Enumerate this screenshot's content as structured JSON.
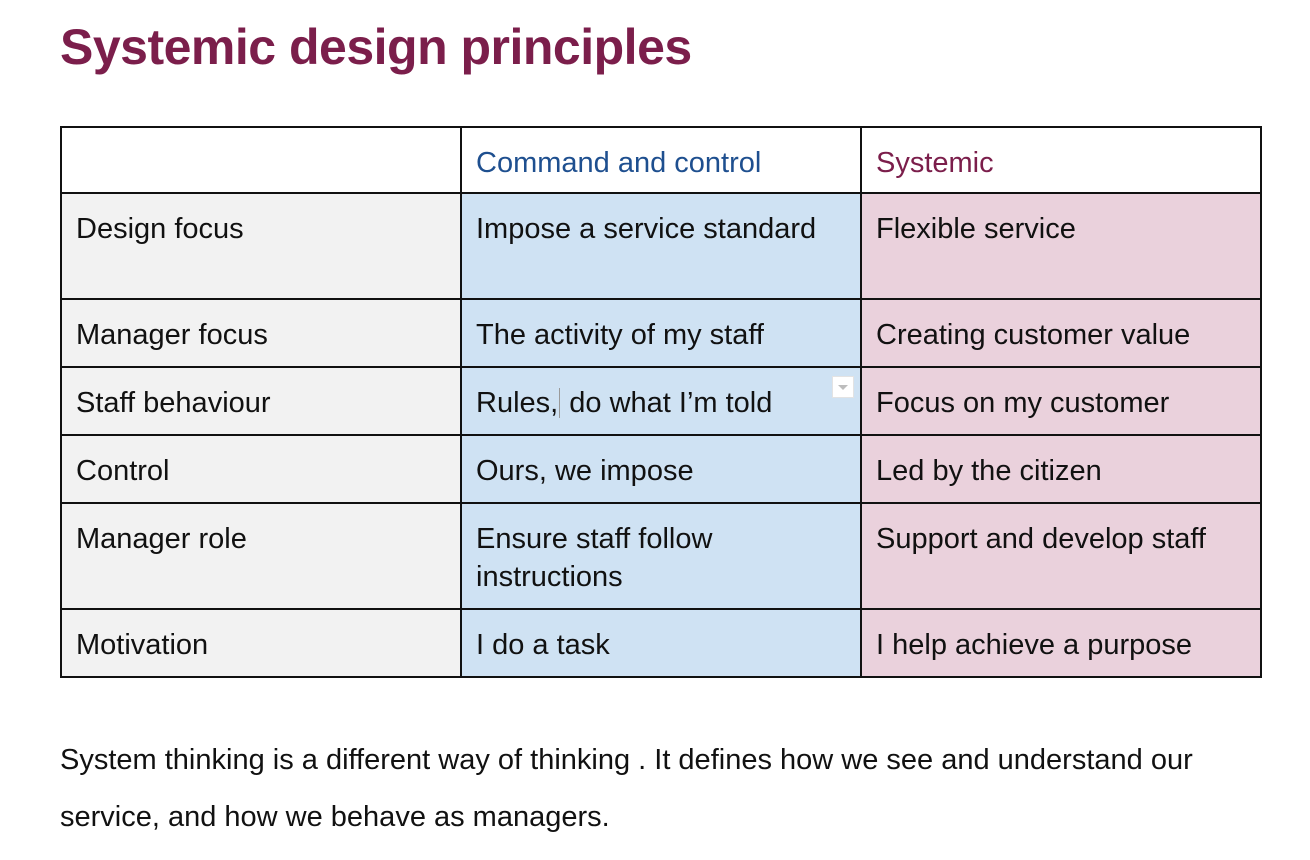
{
  "page": {
    "title": "Systemic design principles",
    "paragraph": "System thinking is a different way of thinking . It defines how we see and understand our service, and how we behave as managers."
  },
  "table": {
    "headers": {
      "label": "",
      "command_and_control": "Command and control",
      "systemic": "Systemic"
    },
    "rows": [
      {
        "label": "Design focus",
        "command_and_control": "Impose a service standard",
        "systemic": "Flexible service"
      },
      {
        "label": "Manager focus",
        "command_and_control": "The activity of my staff",
        "systemic": "Creating customer value"
      },
      {
        "label": "Staff behaviour",
        "command_and_control_a": "Rules,",
        "command_and_control_b": " do what I’m told",
        "systemic": "Focus on my customer"
      },
      {
        "label": "Control",
        "command_and_control": "Ours, we impose",
        "systemic": "Led by the citizen"
      },
      {
        "label": "Manager role",
        "command_and_control": "Ensure staff follow instructions",
        "systemic": "Support and develop staff"
      },
      {
        "label": "Motivation",
        "command_and_control": "I do a task",
        "systemic": "I help achieve a purpose"
      }
    ]
  },
  "colors": {
    "title": "#7b1e4b",
    "header_command_and_control": "#1e4f8f",
    "header_systemic": "#7b1e4b",
    "label_cell_bg": "#f2f2f2",
    "command_and_control_cell_bg": "#cfe2f3",
    "systemic_cell_bg": "#ead1dc"
  },
  "icons": {
    "cell_dropdown": "chevron-down-icon"
  }
}
